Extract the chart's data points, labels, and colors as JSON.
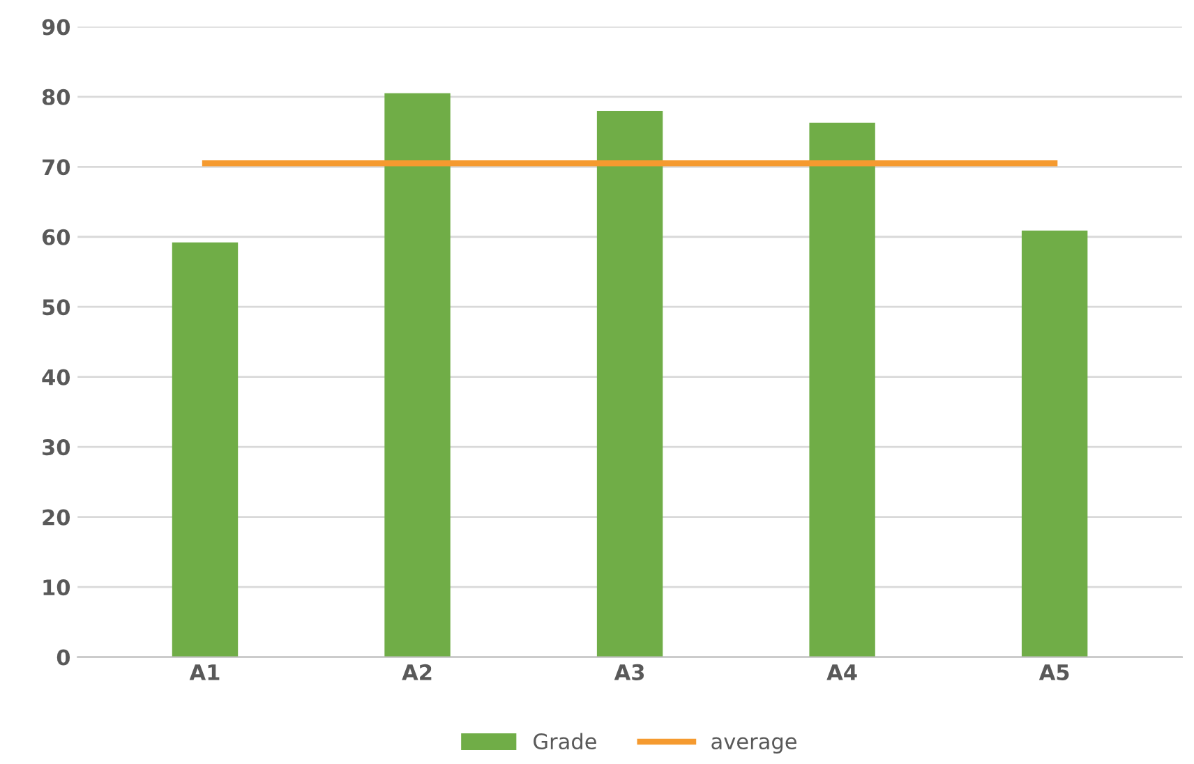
{
  "chart_data": {
    "type": "bar",
    "categories": [
      "A1",
      "A2",
      "A3",
      "A4",
      "A5"
    ],
    "series": [
      {
        "name": "Grade",
        "color": "#70ad47",
        "values": [
          59.2,
          80.5,
          78.0,
          76.3,
          60.9
        ]
      },
      {
        "name": "average",
        "type": "line",
        "color": "#f59a2f",
        "values": [
          70.5,
          70.5,
          70.5,
          70.5,
          70.5
        ]
      }
    ],
    "ylim": [
      0,
      90
    ],
    "yticks": [
      0,
      10,
      20,
      30,
      40,
      50,
      60,
      70,
      80,
      90
    ],
    "grid": "y",
    "legend": "bottom",
    "marker": "none"
  }
}
